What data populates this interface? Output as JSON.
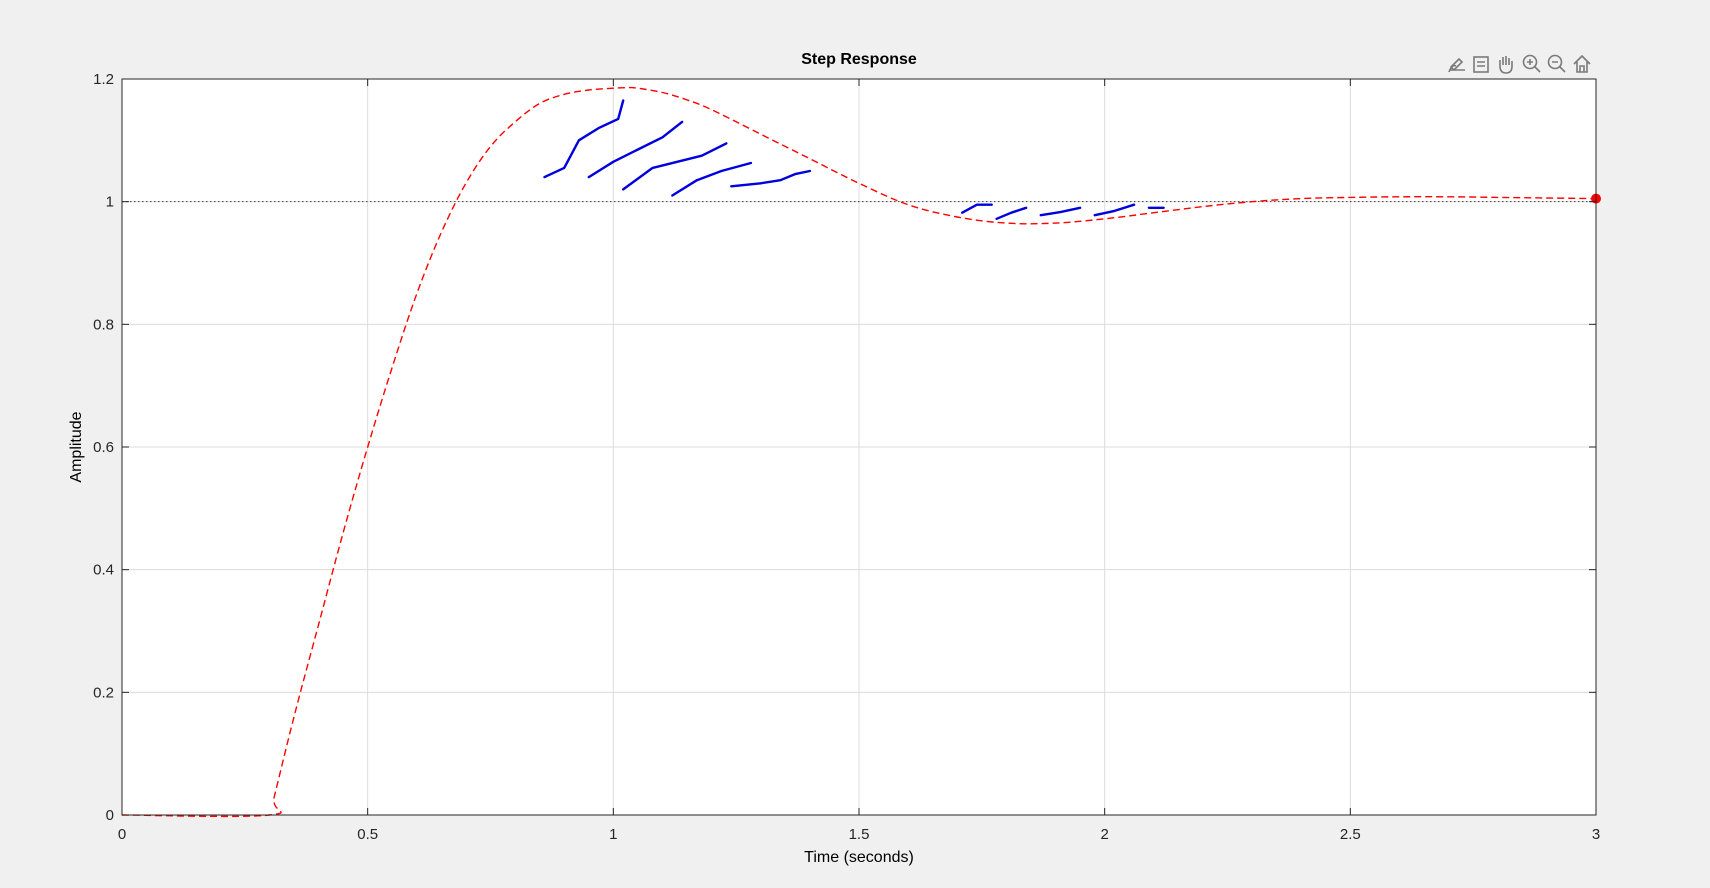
{
  "colors": {
    "figure_bg": "#f0f0f0",
    "axes_bg": "#ffffff",
    "grid": "#dcdcdc",
    "axis": "#262626",
    "response": "#ff0000",
    "reference": "#404040",
    "annotation": "#0000dd",
    "toolbar_icon": "#7a7a7a"
  },
  "toolbar": {
    "icons": [
      "edit-brush-icon",
      "data-tips-icon",
      "pan-hand-icon",
      "zoom-in-icon",
      "zoom-out-icon",
      "home-icon"
    ]
  },
  "chart_data": {
    "type": "line",
    "title": "Step Response",
    "xlabel": "Time (seconds)",
    "ylabel": "Amplitude",
    "xlim": [
      0,
      3
    ],
    "ylim": [
      0,
      1.2
    ],
    "xticks": [
      0,
      0.5,
      1,
      1.5,
      2,
      2.5,
      3
    ],
    "xtick_labels": [
      "0",
      "0.5",
      "1",
      "1.5",
      "2",
      "2.5",
      "3"
    ],
    "yticks": [
      0,
      0.2,
      0.4,
      0.6,
      0.8,
      1,
      1.2
    ],
    "ytick_labels": [
      "0",
      "0.2",
      "0.4",
      "0.6",
      "0.8",
      "1",
      "1.2"
    ],
    "grid": true,
    "legend": "none",
    "reference_line": {
      "y": 1,
      "style": "dotted"
    },
    "series": [
      {
        "style": "dashed",
        "color": "#ff0000",
        "x": [
          0,
          0.3,
          0.31,
          0.35,
          0.4,
          0.45,
          0.5,
          0.55,
          0.6,
          0.65,
          0.7,
          0.75,
          0.8,
          0.85,
          0.9,
          0.95,
          1.0,
          1.03,
          1.05,
          1.1,
          1.15,
          1.2,
          1.3,
          1.4,
          1.5,
          1.6,
          1.7,
          1.8,
          1.9,
          2.0,
          2.1,
          2.2,
          2.3,
          2.4,
          2.5,
          2.6,
          2.7,
          2.8,
          2.9,
          3.0
        ],
        "y": [
          0,
          0,
          0.03,
          0.16,
          0.31,
          0.46,
          0.6,
          0.73,
          0.85,
          0.95,
          1.03,
          1.09,
          1.13,
          1.16,
          1.175,
          1.182,
          1.185,
          1.186,
          1.185,
          1.178,
          1.166,
          1.15,
          1.11,
          1.07,
          1.03,
          0.995,
          0.975,
          0.965,
          0.965,
          0.972,
          0.982,
          0.992,
          1.0,
          1.005,
          1.007,
          1.008,
          1.008,
          1.007,
          1.006,
          1.005
        ]
      }
    ],
    "marker": {
      "x": 3,
      "y": 1.005
    },
    "annotations": {
      "type": "hand-drawn strokes",
      "strokes": [
        [
          [
            0.86,
            1.04
          ],
          [
            0.9,
            1.055
          ],
          [
            0.93,
            1.1
          ],
          [
            0.97,
            1.12
          ],
          [
            1.01,
            1.135
          ],
          [
            1.02,
            1.165
          ]
        ],
        [
          [
            0.95,
            1.04
          ],
          [
            1.0,
            1.065
          ],
          [
            1.05,
            1.085
          ],
          [
            1.1,
            1.105
          ],
          [
            1.14,
            1.13
          ]
        ],
        [
          [
            1.02,
            1.02
          ],
          [
            1.08,
            1.055
          ],
          [
            1.13,
            1.065
          ],
          [
            1.18,
            1.075
          ],
          [
            1.23,
            1.095
          ]
        ],
        [
          [
            1.12,
            1.01
          ],
          [
            1.17,
            1.035
          ],
          [
            1.22,
            1.05
          ],
          [
            1.28,
            1.063
          ]
        ],
        [
          [
            1.24,
            1.025
          ],
          [
            1.3,
            1.03
          ],
          [
            1.34,
            1.035
          ],
          [
            1.37,
            1.045
          ],
          [
            1.4,
            1.05
          ]
        ],
        [
          [
            1.71,
            0.982
          ],
          [
            1.74,
            0.995
          ],
          [
            1.77,
            0.995
          ]
        ],
        [
          [
            1.78,
            0.972
          ],
          [
            1.81,
            0.982
          ],
          [
            1.84,
            0.99
          ]
        ],
        [
          [
            1.87,
            0.978
          ],
          [
            1.91,
            0.983
          ],
          [
            1.95,
            0.99
          ]
        ],
        [
          [
            1.98,
            0.978
          ],
          [
            2.02,
            0.985
          ],
          [
            2.06,
            0.995
          ]
        ],
        [
          [
            2.09,
            0.99
          ],
          [
            2.12,
            0.99
          ]
        ]
      ]
    }
  }
}
